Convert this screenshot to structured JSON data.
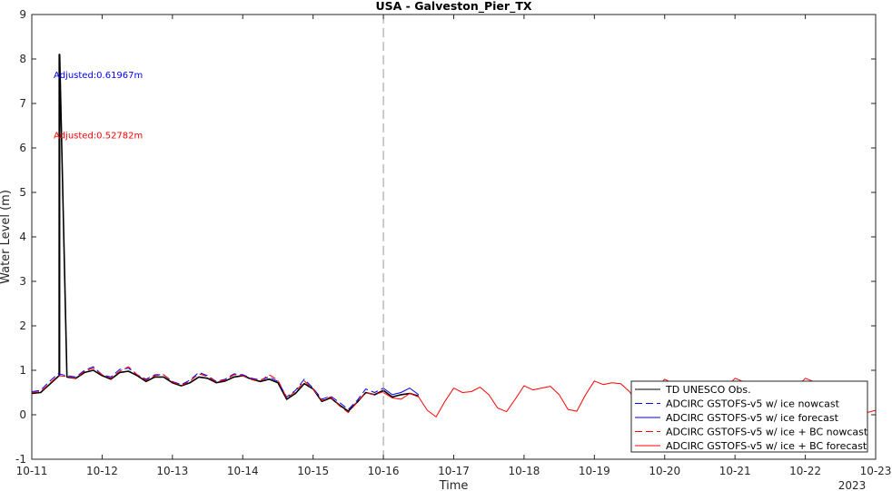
{
  "chart_data": {
    "type": "line",
    "title": "USA - Galveston_Pier_TX",
    "xlabel": "Time",
    "ylabel": "Water Level (m)",
    "year_label": "2023",
    "xlim": [
      "2023-10-11",
      "2023-10-23"
    ],
    "ylim": [
      -1,
      9
    ],
    "x_ticks": [
      "10-11",
      "10-12",
      "10-13",
      "10-14",
      "10-15",
      "10-16",
      "10-17",
      "10-18",
      "10-19",
      "10-20",
      "10-21",
      "10-22",
      "10-23"
    ],
    "y_ticks": [
      "-1",
      "0",
      "1",
      "2",
      "3",
      "4",
      "5",
      "6",
      "7",
      "8",
      "9"
    ],
    "y_tick_values": [
      -1,
      0,
      1,
      2,
      3,
      4,
      5,
      6,
      7,
      8,
      9
    ],
    "vline_x": "2023-10-16",
    "grid": false,
    "legend_position": "bottom-right",
    "annotations": [
      {
        "text": "Adjusted:0.61967m",
        "color": "#0000ff",
        "x": "2023-10-11 09:00",
        "y": 7.65
      },
      {
        "text": "Adjusted:0.52782m",
        "color": "#ff0000",
        "x": "2023-10-11 09:00",
        "y": 6.3
      }
    ],
    "series": [
      {
        "name": "TD UNESCO Obs.",
        "color": "#000000",
        "dash": "solid",
        "x": [
          "2023-10-11 00:00",
          "2023-10-11 03:00",
          "2023-10-11 06:00",
          "2023-10-11 09:00",
          "2023-10-11 09:20",
          "2023-10-11 09:21",
          "2023-10-11 09:25",
          "2023-10-11 09:26",
          "2023-10-11 09:30",
          "2023-10-11 09:31",
          "2023-10-11 12:00",
          "2023-10-11 15:00",
          "2023-10-11 18:00",
          "2023-10-11 21:00",
          "2023-10-12 00:00",
          "2023-10-12 03:00",
          "2023-10-12 06:00",
          "2023-10-12 09:00",
          "2023-10-12 12:00",
          "2023-10-12 15:00",
          "2023-10-12 18:00",
          "2023-10-12 21:00",
          "2023-10-13 00:00",
          "2023-10-13 03:00",
          "2023-10-13 06:00",
          "2023-10-13 09:00",
          "2023-10-13 12:00",
          "2023-10-13 15:00",
          "2023-10-13 18:00",
          "2023-10-13 21:00",
          "2023-10-14 00:00",
          "2023-10-14 03:00",
          "2023-10-14 06:00",
          "2023-10-14 09:00",
          "2023-10-14 12:00",
          "2023-10-14 15:00",
          "2023-10-14 18:00",
          "2023-10-14 21:00",
          "2023-10-15 00:00",
          "2023-10-15 03:00",
          "2023-10-15 06:00",
          "2023-10-15 09:00",
          "2023-10-15 12:00",
          "2023-10-15 15:00",
          "2023-10-15 18:00",
          "2023-10-15 21:00",
          "2023-10-16 00:00",
          "2023-10-16 03:00",
          "2023-10-16 06:00",
          "2023-10-16 09:00",
          "2023-10-16 12:00"
        ],
        "y": [
          0.48,
          0.5,
          0.68,
          0.86,
          0.88,
          8.1,
          8.1,
          0.88,
          0.88,
          8.1,
          0.85,
          0.82,
          0.95,
          1.0,
          0.88,
          0.8,
          0.95,
          0.98,
          0.88,
          0.75,
          0.85,
          0.85,
          0.72,
          0.65,
          0.72,
          0.85,
          0.82,
          0.72,
          0.76,
          0.85,
          0.88,
          0.8,
          0.75,
          0.8,
          0.72,
          0.35,
          0.48,
          0.7,
          0.58,
          0.3,
          0.38,
          0.22,
          0.08,
          0.28,
          0.5,
          0.45,
          0.55,
          0.4,
          0.45,
          0.48,
          0.42
        ]
      },
      {
        "name": "ADCIRC GSTOFS-v5 w/ ice nowcast",
        "color": "#0000ff",
        "dash": "dashed",
        "x": [
          "2023-10-11 00:00",
          "2023-10-11 03:00",
          "2023-10-11 06:00",
          "2023-10-11 09:00",
          "2023-10-11 12:00",
          "2023-10-11 15:00",
          "2023-10-11 18:00",
          "2023-10-11 21:00",
          "2023-10-12 00:00",
          "2023-10-12 03:00",
          "2023-10-12 06:00",
          "2023-10-12 09:00",
          "2023-10-12 12:00",
          "2023-10-12 15:00",
          "2023-10-12 18:00",
          "2023-10-12 21:00",
          "2023-10-13 00:00",
          "2023-10-13 03:00",
          "2023-10-13 06:00",
          "2023-10-13 09:00",
          "2023-10-13 12:00",
          "2023-10-13 15:00",
          "2023-10-13 18:00",
          "2023-10-13 21:00",
          "2023-10-14 00:00",
          "2023-10-14 03:00",
          "2023-10-14 06:00",
          "2023-10-14 09:00",
          "2023-10-14 12:00",
          "2023-10-14 15:00",
          "2023-10-14 18:00",
          "2023-10-14 21:00",
          "2023-10-15 00:00",
          "2023-10-15 03:00",
          "2023-10-15 06:00",
          "2023-10-15 09:00",
          "2023-10-15 12:00",
          "2023-10-15 15:00",
          "2023-10-15 18:00",
          "2023-10-15 21:00",
          "2023-10-16 00:00"
        ],
        "y": [
          0.52,
          0.55,
          0.75,
          0.92,
          0.88,
          0.85,
          1.0,
          1.08,
          0.9,
          0.85,
          1.02,
          1.05,
          0.9,
          0.8,
          0.9,
          0.9,
          0.75,
          0.68,
          0.78,
          0.95,
          0.88,
          0.75,
          0.8,
          0.92,
          0.9,
          0.82,
          0.78,
          0.85,
          0.75,
          0.4,
          0.55,
          0.8,
          0.6,
          0.35,
          0.42,
          0.28,
          0.12,
          0.32,
          0.58,
          0.5,
          0.6
        ]
      },
      {
        "name": "ADCIRC GSTOFS-v5 w/ ice forecast",
        "color": "#0000ff",
        "dash": "solid",
        "x": [
          "2023-10-16 00:00",
          "2023-10-16 03:00",
          "2023-10-16 06:00",
          "2023-10-16 09:00",
          "2023-10-16 12:00"
        ],
        "y": [
          0.6,
          0.45,
          0.5,
          0.6,
          0.45
        ]
      },
      {
        "name": "ADCIRC GSTOFS-v5 w/ ice + BC nowcast",
        "color": "#ff0000",
        "dash": "dashed",
        "x": [
          "2023-10-11 00:00",
          "2023-10-11 03:00",
          "2023-10-11 06:00",
          "2023-10-11 09:00",
          "2023-10-11 12:00",
          "2023-10-11 15:00",
          "2023-10-11 18:00",
          "2023-10-11 21:00",
          "2023-10-12 00:00",
          "2023-10-12 03:00",
          "2023-10-12 06:00",
          "2023-10-12 09:00",
          "2023-10-12 12:00",
          "2023-10-12 15:00",
          "2023-10-12 18:00",
          "2023-10-12 21:00",
          "2023-10-13 00:00",
          "2023-10-13 03:00",
          "2023-10-13 06:00",
          "2023-10-13 09:00",
          "2023-10-13 12:00",
          "2023-10-13 15:00",
          "2023-10-13 18:00",
          "2023-10-13 21:00",
          "2023-10-14 00:00",
          "2023-10-14 03:00",
          "2023-10-14 06:00",
          "2023-10-14 09:00",
          "2023-10-14 12:00",
          "2023-10-14 15:00",
          "2023-10-14 18:00",
          "2023-10-14 21:00",
          "2023-10-15 00:00",
          "2023-10-15 03:00",
          "2023-10-15 06:00",
          "2023-10-15 09:00",
          "2023-10-15 12:00",
          "2023-10-15 15:00",
          "2023-10-15 18:00",
          "2023-10-15 21:00",
          "2023-10-16 00:00"
        ],
        "y": [
          0.5,
          0.52,
          0.7,
          0.88,
          0.86,
          0.82,
          0.98,
          1.05,
          0.9,
          0.82,
          0.98,
          1.08,
          0.9,
          0.78,
          0.88,
          0.9,
          0.74,
          0.66,
          0.76,
          0.92,
          0.86,
          0.74,
          0.78,
          0.9,
          0.88,
          0.8,
          0.76,
          0.9,
          0.78,
          0.38,
          0.52,
          0.76,
          0.58,
          0.32,
          0.4,
          0.2,
          0.05,
          0.28,
          0.5,
          0.45,
          0.52
        ]
      },
      {
        "name": "ADCIRC GSTOFS-v5 w/ ice + BC forecast",
        "color": "#ff0000",
        "dash": "solid",
        "x": [
          "2023-10-16 00:00",
          "2023-10-16 03:00",
          "2023-10-16 06:00",
          "2023-10-16 09:00",
          "2023-10-16 12:00",
          "2023-10-16 15:00",
          "2023-10-16 18:00",
          "2023-10-16 21:00",
          "2023-10-17 00:00",
          "2023-10-17 03:00",
          "2023-10-17 06:00",
          "2023-10-17 09:00",
          "2023-10-17 12:00",
          "2023-10-17 15:00",
          "2023-10-17 18:00",
          "2023-10-17 21:00",
          "2023-10-18 00:00",
          "2023-10-18 03:00",
          "2023-10-18 06:00",
          "2023-10-18 09:00",
          "2023-10-18 12:00",
          "2023-10-18 15:00",
          "2023-10-18 18:00",
          "2023-10-18 21:00",
          "2023-10-19 00:00",
          "2023-10-19 03:00",
          "2023-10-19 06:00",
          "2023-10-19 09:00",
          "2023-10-19 12:00",
          "2023-10-19 15:00",
          "2023-10-19 18:00",
          "2023-10-19 21:00",
          "2023-10-20 00:00",
          "2023-10-20 03:00",
          "2023-10-20 06:00",
          "2023-10-20 09:00",
          "2023-10-20 12:00",
          "2023-10-20 15:00",
          "2023-10-20 18:00",
          "2023-10-20 21:00",
          "2023-10-21 00:00",
          "2023-10-21 03:00",
          "2023-10-21 06:00",
          "2023-10-21 09:00",
          "2023-10-21 12:00",
          "2023-10-21 15:00",
          "2023-10-21 18:00",
          "2023-10-21 21:00",
          "2023-10-22 00:00",
          "2023-10-22 03:00",
          "2023-10-22 06:00",
          "2023-10-22 09:00",
          "2023-10-22 12:00",
          "2023-10-22 15:00",
          "2023-10-22 18:00",
          "2023-10-22 21:00",
          "2023-10-23 00:00"
        ],
        "y": [
          0.5,
          0.38,
          0.35,
          0.48,
          0.4,
          0.1,
          -0.05,
          0.3,
          0.6,
          0.5,
          0.52,
          0.62,
          0.45,
          0.15,
          0.07,
          0.35,
          0.65,
          0.56,
          0.6,
          0.64,
          0.45,
          0.12,
          0.08,
          0.45,
          0.76,
          0.68,
          0.72,
          0.7,
          0.52,
          0.25,
          0.3,
          0.6,
          0.8,
          0.7,
          0.72,
          0.74,
          0.6,
          0.38,
          0.42,
          0.62,
          0.82,
          0.74,
          0.74,
          0.72,
          0.6,
          0.42,
          0.44,
          0.62,
          0.82,
          0.74,
          0.72,
          0.68,
          0.52,
          0.32,
          0.15,
          0.05,
          0.1
        ]
      }
    ]
  }
}
